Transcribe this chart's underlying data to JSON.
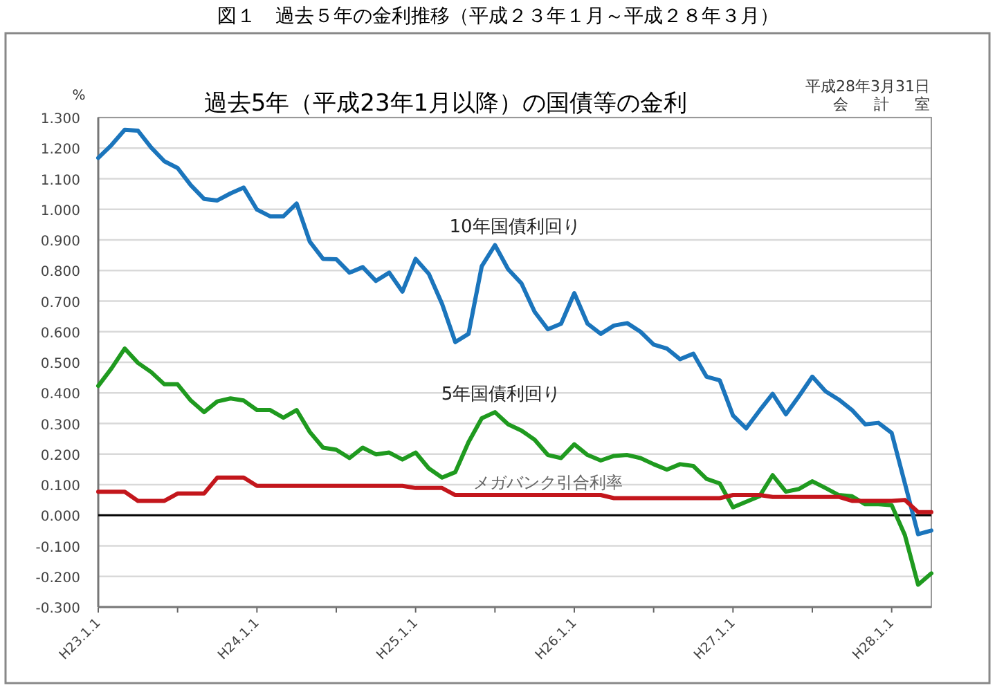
{
  "chart_data": {
    "type": "line",
    "title": "図１　過去５年の金利推移（平成２３年１月～平成２８年３月）",
    "subtitle": "過去5年（平成23年1月以降）の国債等の金利",
    "ylabel": "%",
    "categories": [
      "H23.1.1",
      null,
      null,
      null,
      null,
      null,
      null,
      null,
      null,
      null,
      null,
      null,
      "H24.1.1",
      null,
      null,
      null,
      null,
      null,
      null,
      null,
      null,
      null,
      null,
      null,
      "H25.1.1",
      null,
      null,
      null,
      null,
      null,
      null,
      null,
      null,
      null,
      null,
      null,
      "H26.1.1",
      null,
      null,
      null,
      null,
      null,
      null,
      null,
      null,
      null,
      null,
      null,
      "H27.1.1",
      null,
      null,
      null,
      null,
      null,
      null,
      null,
      null,
      null,
      null,
      null,
      "H28.1.1",
      null,
      null,
      null
    ],
    "ylim": [
      -0.3,
      1.3
    ],
    "yticks": [
      {
        "value": -0.3,
        "label": "-0.300"
      },
      {
        "value": -0.2,
        "label": "-0.200"
      },
      {
        "value": -0.1,
        "label": "-0.100"
      },
      {
        "value": 0,
        "label": "0.000"
      },
      {
        "value": 0.1,
        "label": "0.100"
      },
      {
        "value": 0.2,
        "label": "0.200"
      },
      {
        "value": 0.3,
        "label": "0.300"
      },
      {
        "value": 0.4,
        "label": "0.400"
      },
      {
        "value": 0.5,
        "label": "0.500"
      },
      {
        "value": 0.6,
        "label": "0.600"
      },
      {
        "value": 0.7,
        "label": "0.700"
      },
      {
        "value": 0.8,
        "label": "0.800"
      },
      {
        "value": 0.9,
        "label": "0.900"
      },
      {
        "value": 1.0,
        "label": "1.000"
      },
      {
        "value": 1.1,
        "label": "1.100"
      },
      {
        "value": 1.2,
        "label": "1.200"
      },
      {
        "value": 1.3,
        "label": "1.300"
      }
    ],
    "grid": "y",
    "ref_lines": [
      {
        "axis": "y",
        "value": 0,
        "color": "#000000"
      }
    ],
    "series": [
      {
        "color": "#1b75bc",
        "values": [
          1.168,
          1.21,
          1.26,
          1.257,
          1.202,
          1.157,
          1.135,
          1.079,
          1.034,
          1.029,
          1.052,
          1.071,
          0.999,
          0.977,
          0.977,
          1.019,
          0.894,
          0.838,
          0.837,
          0.793,
          0.811,
          0.766,
          0.793,
          0.731,
          0.838,
          0.789,
          0.691,
          0.566,
          0.593,
          0.814,
          0.883,
          0.804,
          0.758,
          0.665,
          0.608,
          0.626,
          0.726,
          0.626,
          0.593,
          0.62,
          0.628,
          0.6,
          0.558,
          0.545,
          0.51,
          0.528,
          0.453,
          0.441,
          0.326,
          0.284,
          0.342,
          0.397,
          0.33,
          0.39,
          0.453,
          0.405,
          0.378,
          0.344,
          0.297,
          0.302,
          0.269,
          0.104,
          -0.062,
          -0.05
        ]
      },
      {
        "color": "#1f9a1f",
        "values": [
          0.423,
          0.48,
          0.545,
          0.498,
          0.468,
          0.428,
          0.428,
          0.375,
          0.337,
          0.372,
          0.382,
          0.375,
          0.344,
          0.344,
          0.319,
          0.344,
          0.272,
          0.221,
          0.214,
          0.187,
          0.221,
          0.199,
          0.205,
          0.182,
          0.205,
          0.153,
          0.123,
          0.141,
          0.239,
          0.317,
          0.337,
          0.297,
          0.277,
          0.247,
          0.197,
          0.187,
          0.232,
          0.197,
          0.179,
          0.194,
          0.197,
          0.187,
          0.167,
          0.149,
          0.167,
          0.161,
          0.119,
          0.104,
          0.026,
          0.044,
          0.062,
          0.131,
          0.077,
          0.086,
          0.111,
          0.089,
          0.066,
          0.062,
          0.036,
          0.036,
          0.033,
          -0.065,
          -0.227,
          -0.19
        ]
      },
      {
        "color": "#c3161c",
        "values": [
          0.077,
          0.077,
          0.077,
          0.047,
          0.047,
          0.047,
          0.071,
          0.071,
          0.071,
          0.123,
          0.123,
          0.123,
          0.096,
          0.096,
          0.096,
          0.096,
          0.096,
          0.096,
          0.096,
          0.096,
          0.096,
          0.096,
          0.096,
          0.096,
          0.089,
          0.089,
          0.089,
          0.066,
          0.066,
          0.066,
          0.066,
          0.066,
          0.066,
          0.066,
          0.066,
          0.066,
          0.066,
          0.066,
          0.066,
          0.056,
          0.056,
          0.056,
          0.056,
          0.056,
          0.056,
          0.056,
          0.056,
          0.056,
          0.066,
          0.066,
          0.066,
          0.06,
          0.06,
          0.06,
          0.06,
          0.06,
          0.06,
          0.047,
          0.047,
          0.047,
          0.047,
          0.05,
          0.01,
          0.01
        ]
      }
    ],
    "annotations": [
      "10年国債利回り",
      "5年国債利回り",
      "メガバンク引合利率",
      "平成28年3月31日",
      "会　計　室"
    ]
  }
}
